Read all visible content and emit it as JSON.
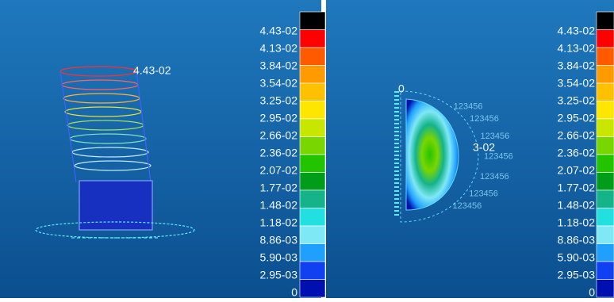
{
  "legend_colors": [
    "#000000",
    "#ff0000",
    "#ff5a00",
    "#ff9a00",
    "#ffc000",
    "#ffe600",
    "#c8e600",
    "#7ad600",
    "#22c400",
    "#009c1a",
    "#14b38a",
    "#22e0e0",
    "#7fe8f5",
    "#1fa0ff",
    "#1040f0",
    "#0010b0"
  ],
  "panels": [
    {
      "legend_labels": [
        "4.43-02",
        "4.13-02",
        "3.84-02",
        "3.54-02",
        "3.25-02",
        "2.95-02",
        "2.66-02",
        "2.36-02",
        "2.07-02",
        "1.77-02",
        "1.48-02",
        "1.18-02",
        "8.86-03",
        "5.90-03",
        "2.95-03",
        "0"
      ],
      "annotations": [
        "4.43-02"
      ]
    },
    {
      "legend_labels": [
        "4.43-02",
        "4.13-02",
        "3.84-02",
        "3.54-02",
        "3.25-02",
        "2.95-02",
        "2.66-02",
        "2.36-02",
        "2.07-02",
        "1.77-02",
        "1.48-02",
        "1.18-02",
        "8.86-03",
        "5.90-03",
        "2.95-03",
        "0"
      ],
      "annotations": [
        "0",
        "3-02"
      ],
      "node_labels": [
        "123456",
        "123456",
        "123456",
        "123456",
        "123456",
        "123456",
        "123456"
      ]
    }
  ]
}
